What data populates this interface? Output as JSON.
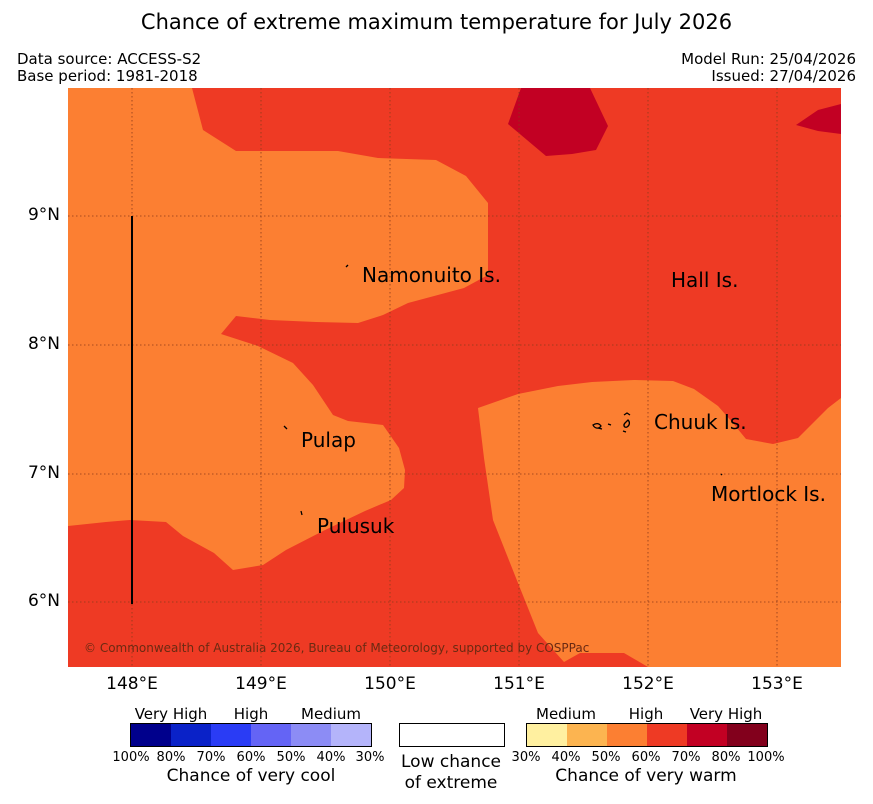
{
  "title": "Chance of extreme maximum temperature for July 2026",
  "header": {
    "data_source": "Data source: ACCESS-S2",
    "base_period": "Base period: 1981-2018",
    "model_run": "Model Run: 25/04/2026",
    "issued": "Issued: 27/04/2026"
  },
  "map": {
    "lat_labels": [
      "9°N",
      "8°N",
      "7°N",
      "6°N"
    ],
    "lon_labels": [
      "148°E",
      "149°E",
      "150°E",
      "151°E",
      "152°E",
      "153°E"
    ],
    "places": {
      "namonuito": "Namonuito Is.",
      "hall": "Hall Is.",
      "pulap": "Pulap",
      "chuuk": "Chuuk Is.",
      "mortlock": "Mortlock Is.",
      "pulusuk": "Pulusuk"
    },
    "credit": "© Commonwealth of Australia 2026, Bureau of Meteorology, supported by COSPPac",
    "colors": {
      "warm_60_70": "#fc7f32",
      "warm_70_80": "#ee3a24",
      "warm_80_90": "#c20023"
    }
  },
  "legend": {
    "cool": {
      "groups": [
        "Very High",
        "High",
        "Medium"
      ],
      "ticks": [
        "100%",
        "80%",
        "70%",
        "60%",
        "50%",
        "40%",
        "30%"
      ],
      "caption": "Chance of very cool",
      "colors": [
        "#00008c",
        "#0a22c8",
        "#2a3cf5",
        "#6464f5",
        "#8c8cf5",
        "#b4b4fa"
      ]
    },
    "neutral": {
      "caption_line1": "Low chance",
      "caption_line2": "of extreme"
    },
    "warm": {
      "groups": [
        "Medium",
        "High",
        "Very High"
      ],
      "ticks": [
        "30%",
        "40%",
        "50%",
        "60%",
        "70%",
        "80%",
        "100%"
      ],
      "caption": "Chance of very warm",
      "colors": [
        "#fff0a0",
        "#fcb450",
        "#fc7f32",
        "#ee3a24",
        "#c20023",
        "#82001c"
      ]
    }
  }
}
